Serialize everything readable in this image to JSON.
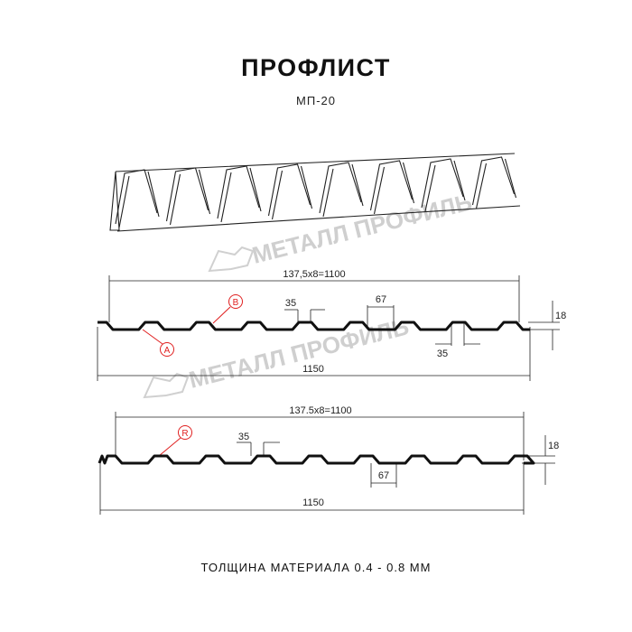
{
  "title": "ПРОФЛИСТ",
  "model": "МП-20",
  "watermark": "МЕТАЛЛ ПРОФИЛЬ",
  "profile_top": {
    "pitch_dim": "137,5х8=1100",
    "total_width": "1150",
    "height": "18",
    "top_dim": "35",
    "bottom_dim_left": "67",
    "bottom_dim_right": "35",
    "label_a": "A",
    "label_b": "B"
  },
  "profile_bottom": {
    "pitch_dim": "137.5x8=1100",
    "total_width": "1150",
    "height": "18",
    "top_dim": "35",
    "bottom_dim": "67",
    "label_r": "R"
  },
  "thickness": "ТОЛЩИНА МАТЕРИАЛА 0.4 - 0.8 ММ",
  "colors": {
    "accent": "#e02020",
    "line": "#111111",
    "watermark": "#c8c8c8"
  }
}
